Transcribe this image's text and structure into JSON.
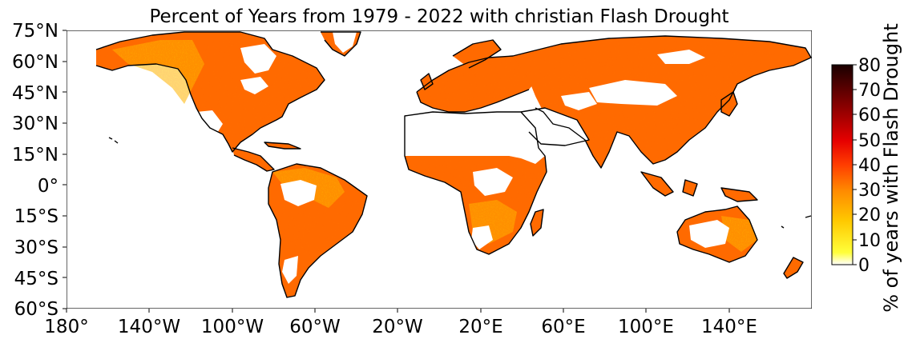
{
  "map": {
    "title": "Percent of Years from 1979 - 2022 with christian Flash Drought",
    "projection": "PlateCarree",
    "lon_range": [
      -180,
      180
    ],
    "lat_range": [
      -60,
      75
    ],
    "lat_ticks": [
      "75°N",
      "60°N",
      "45°N",
      "30°N",
      "15°N",
      "0°",
      "15°S",
      "30°S",
      "45°S",
      "60°S"
    ],
    "lon_ticks": [
      "180°",
      "140°W",
      "100°W",
      "60°W",
      "20°W",
      "20°E",
      "60°E",
      "100°E",
      "140°E"
    ],
    "colorbar": {
      "label": "% of years with Flash Drought",
      "ticks": [
        "0",
        "10",
        "20",
        "30",
        "40",
        "50",
        "60",
        "70",
        "80"
      ],
      "range": [
        0,
        80
      ],
      "colormap": "hot_r",
      "colors": [
        "#ffffff",
        "#ffff3a",
        "#ffc800",
        "#ff8a00",
        "#ff3d00",
        "#e60000",
        "#a00000",
        "#5a0000",
        "#1a0000"
      ]
    },
    "ocean_color": "#ffffff",
    "coastline_color": "#000000"
  }
}
